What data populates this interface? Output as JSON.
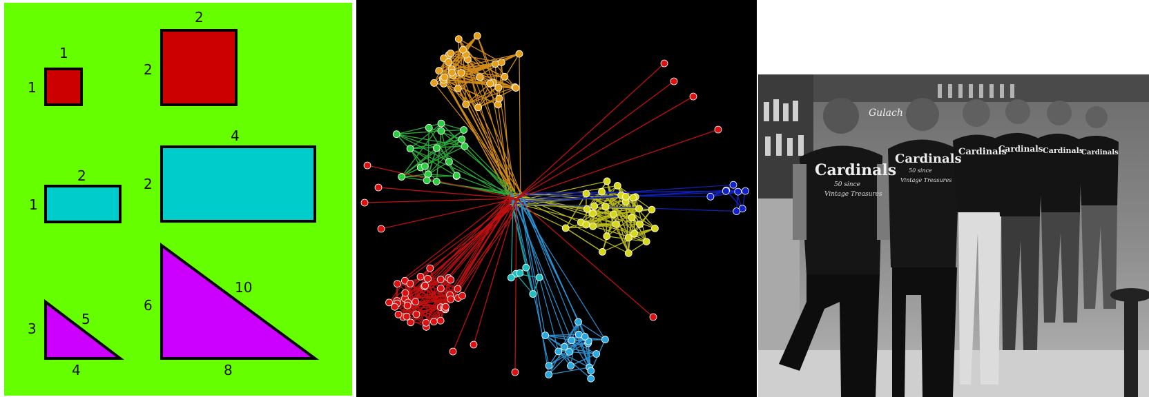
{
  "shapes_panel": {
    "background": "#66ff00",
    "small_square": {
      "color": "#cc0000",
      "top_label": "1",
      "side_label": "1"
    },
    "large_square": {
      "color": "#cc0000",
      "top_label": "2",
      "side_label": "2"
    },
    "small_rect": {
      "color": "#00cccc",
      "top_label": "2",
      "side_label": "1"
    },
    "large_rect": {
      "color": "#00cccc",
      "top_label": "4",
      "side_label": "2"
    },
    "small_triangle": {
      "color": "#cc00ff",
      "side_label": "3",
      "hyp_label": "5",
      "bottom_label": "4"
    },
    "large_triangle": {
      "color": "#cc00ff",
      "side_label": "6",
      "hyp_label": "10",
      "bottom_label": "8"
    }
  },
  "network_panel": {
    "background": "#000000",
    "cluster_colors": {
      "orange": "#e8a01a",
      "green": "#2ecc40",
      "red": "#dd1111",
      "yellow": "#d8d81a",
      "blue": "#1122cc",
      "lightblue": "#2aa8e0",
      "teal": "#20c0c0"
    }
  },
  "photo_panel": {
    "shirt_brand": "Cardinals",
    "shirt_subline": "50 since",
    "shirt_tagline": "Vintage Treasures",
    "bar_sign": "Gulach"
  }
}
